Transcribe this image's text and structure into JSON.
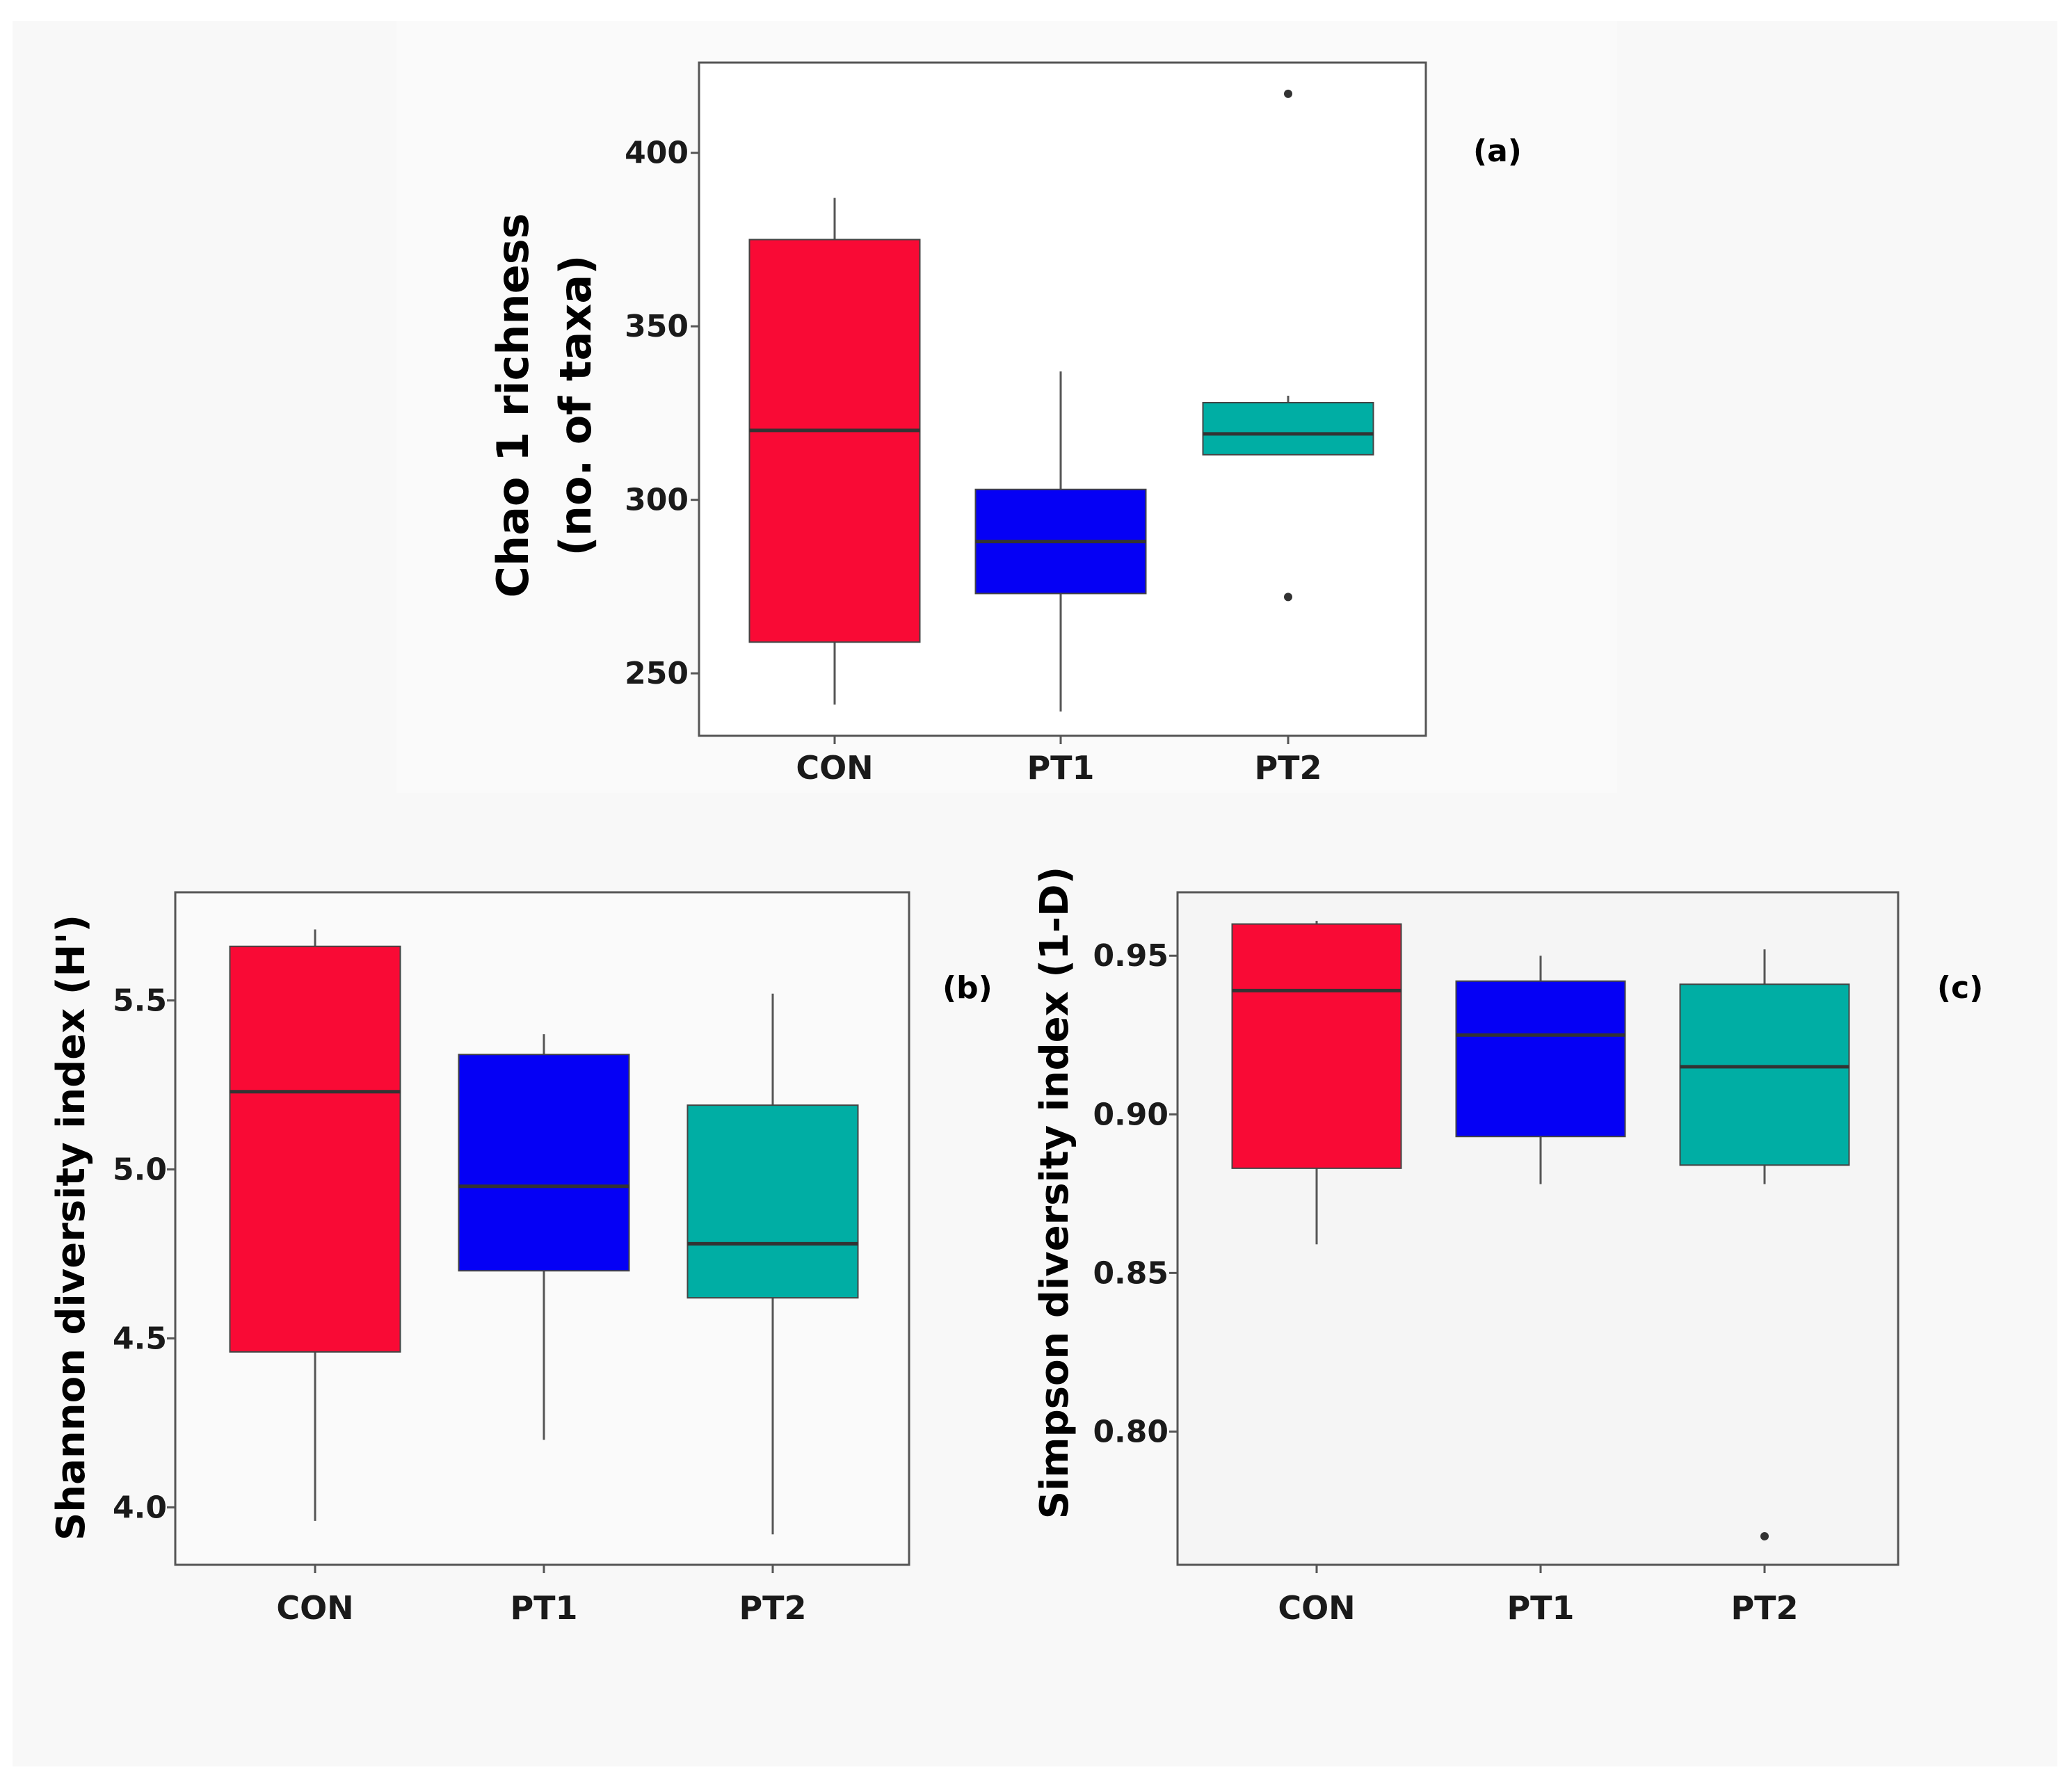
{
  "colors": {
    "CON": "#f90a35",
    "PT1": "#0500f5",
    "PT2": "#00aea4",
    "panel_border": "#555555",
    "median_line": "#333333",
    "whisker": "#555555",
    "outlier": "#333333"
  },
  "chart_data": [
    {
      "id": "a",
      "type": "box",
      "panel_label": "(a)",
      "ylabel_line1": "Chao 1 richness",
      "ylabel_line2": "(no. of taxa)",
      "categories": [
        "CON",
        "PT1",
        "PT2"
      ],
      "ylim": [
        232,
        426
      ],
      "yticks": [
        250,
        300,
        350,
        400
      ],
      "ytick_labels": [
        "250",
        "300",
        "350",
        "400"
      ],
      "boxes": [
        {
          "name": "CON",
          "whisker_low": 241,
          "q1": 259,
          "median": 320,
          "q3": 375,
          "whisker_high": 387,
          "outliers": []
        },
        {
          "name": "PT1",
          "whisker_low": 239,
          "q1": 273,
          "median": 288,
          "q3": 303,
          "whisker_high": 337,
          "outliers": []
        },
        {
          "name": "PT2",
          "whisker_low": 313,
          "q1": 313,
          "median": 319,
          "q3": 328,
          "whisker_high": 330,
          "outliers": [
            272,
            417
          ]
        }
      ]
    },
    {
      "id": "b",
      "type": "box",
      "panel_label": "(b)",
      "ylabel": "Shannon diversity index (H')",
      "categories": [
        "CON",
        "PT1",
        "PT2"
      ],
      "ylim": [
        3.83,
        5.82
      ],
      "yticks": [
        4.0,
        4.5,
        5.0,
        5.5
      ],
      "ytick_labels": [
        "4.0",
        "4.5",
        "5.0",
        "5.5"
      ],
      "boxes": [
        {
          "name": "CON",
          "whisker_low": 3.96,
          "q1": 4.46,
          "median": 5.23,
          "q3": 5.66,
          "whisker_high": 5.71,
          "outliers": []
        },
        {
          "name": "PT1",
          "whisker_low": 4.2,
          "q1": 4.7,
          "median": 4.95,
          "q3": 5.34,
          "whisker_high": 5.4,
          "outliers": []
        },
        {
          "name": "PT2",
          "whisker_low": 3.92,
          "q1": 4.62,
          "median": 4.78,
          "q3": 5.19,
          "whisker_high": 5.52,
          "outliers": []
        }
      ]
    },
    {
      "id": "c",
      "type": "box",
      "panel_label": "(c)",
      "ylabel": "Simpson diversity index (1-D)",
      "categories": [
        "CON",
        "PT1",
        "PT2"
      ],
      "ylim": [
        0.758,
        0.97
      ],
      "yticks": [
        0.8,
        0.85,
        0.9,
        0.95
      ],
      "ytick_labels": [
        "0.80",
        "0.85",
        "0.90",
        "0.95"
      ],
      "boxes": [
        {
          "name": "CON",
          "whisker_low": 0.859,
          "q1": 0.883,
          "median": 0.939,
          "q3": 0.96,
          "whisker_high": 0.961,
          "outliers": []
        },
        {
          "name": "PT1",
          "whisker_low": 0.878,
          "q1": 0.893,
          "median": 0.925,
          "q3": 0.942,
          "whisker_high": 0.95,
          "outliers": []
        },
        {
          "name": "PT2",
          "whisker_low": 0.878,
          "q1": 0.884,
          "median": 0.915,
          "q3": 0.941,
          "whisker_high": 0.952,
          "outliers": [
            0.767
          ]
        }
      ]
    }
  ]
}
